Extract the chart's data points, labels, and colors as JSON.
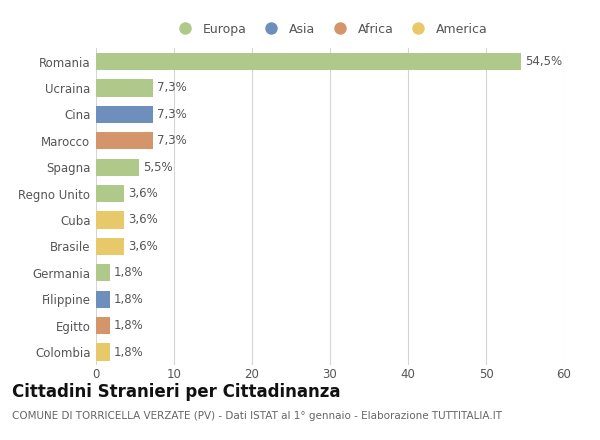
{
  "categories": [
    "Romania",
    "Ucraina",
    "Cina",
    "Marocco",
    "Spagna",
    "Regno Unito",
    "Cuba",
    "Brasile",
    "Germania",
    "Filippine",
    "Egitto",
    "Colombia"
  ],
  "values": [
    54.5,
    7.3,
    7.3,
    7.3,
    5.5,
    3.6,
    3.6,
    3.6,
    1.8,
    1.8,
    1.8,
    1.8
  ],
  "labels": [
    "54,5%",
    "7,3%",
    "7,3%",
    "7,3%",
    "5,5%",
    "3,6%",
    "3,6%",
    "3,6%",
    "1,8%",
    "1,8%",
    "1,8%",
    "1,8%"
  ],
  "colors": [
    "#aec98a",
    "#aec98a",
    "#6e8fbc",
    "#d4956a",
    "#aec98a",
    "#aec98a",
    "#e8c96a",
    "#e8c96a",
    "#aec98a",
    "#6e8fbc",
    "#d4956a",
    "#e8c96a"
  ],
  "legend_labels": [
    "Europa",
    "Asia",
    "Africa",
    "America"
  ],
  "legend_colors": [
    "#aec98a",
    "#6e8fbc",
    "#d4956a",
    "#e8c96a"
  ],
  "title": "Cittadini Stranieri per Cittadinanza",
  "subtitle": "COMUNE DI TORRICELLA VERZATE (PV) - Dati ISTAT al 1° gennaio - Elaborazione TUTTITALIA.IT",
  "xlim": [
    0,
    60
  ],
  "xticks": [
    0,
    10,
    20,
    30,
    40,
    50,
    60
  ],
  "background_color": "#ffffff",
  "grid_color": "#d5d5d5",
  "bar_height": 0.65,
  "title_fontsize": 12,
  "subtitle_fontsize": 7.5,
  "tick_fontsize": 8.5,
  "label_fontsize": 8.5,
  "legend_fontsize": 9
}
